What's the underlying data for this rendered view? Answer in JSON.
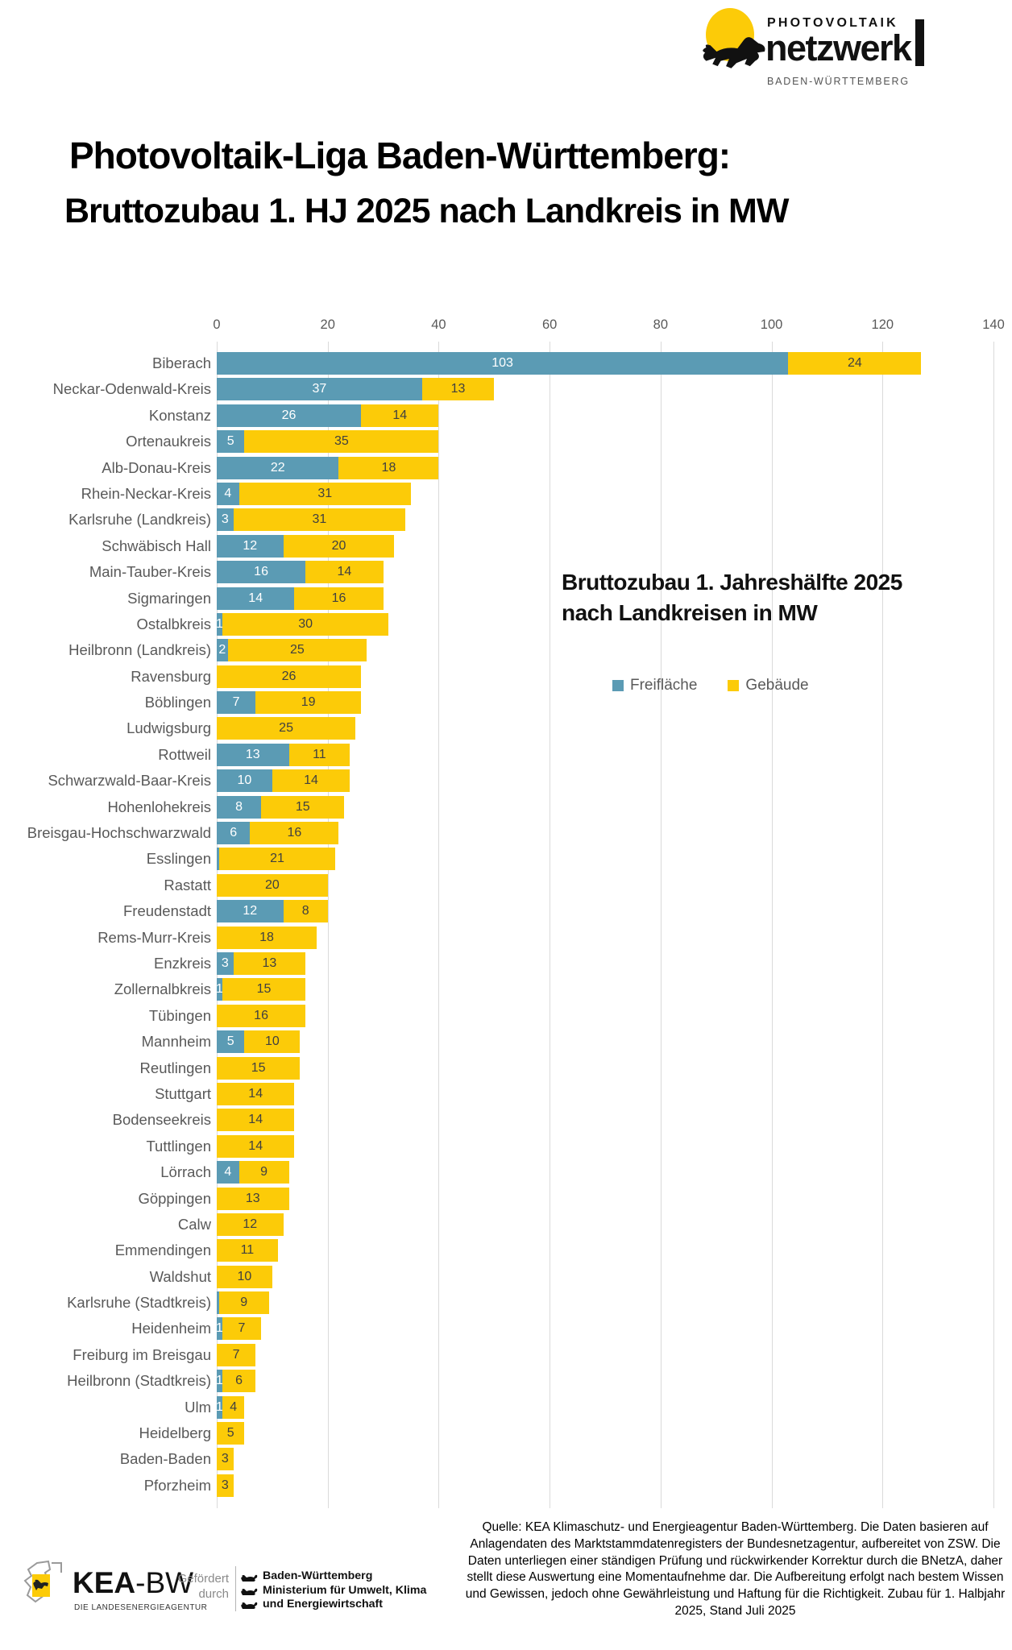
{
  "logo": {
    "brand_top": "PHOTOVOLTAIK",
    "brand_main": "netzwerk",
    "brand_sub": "BADEN-WÜRTTEMBERG"
  },
  "header": {
    "title_line1": "Photovoltaik-Liga Baden-Württemberg:",
    "title_line2": "Bruttozubau 1. HJ 2025 nach Landkreis in MW"
  },
  "chart_data": {
    "type": "bar",
    "orientation": "horizontal",
    "stacked": true,
    "title_lines": [
      "Bruttozubau 1. Jahreshälfte 2025",
      "nach Landkreisen in MW"
    ],
    "xlabel": "MW",
    "xlim": [
      0,
      140
    ],
    "x_ticks": [
      0,
      20,
      40,
      60,
      80,
      100,
      120,
      140
    ],
    "grid": true,
    "legend_position": "center-right",
    "legend": [
      "Freifläche",
      "Gebäude"
    ],
    "colors": {
      "freiflaeche": "#5B9BB4",
      "gebaeude": "#FCCB08",
      "label_on_blue": "#FFFFFF",
      "label_on_yellow": "#404040"
    },
    "rows": [
      {
        "name": "Biberach",
        "freiflaeche": 103,
        "gebaeude": 24
      },
      {
        "name": "Neckar-Odenwald-Kreis",
        "freiflaeche": 37,
        "gebaeude": 13
      },
      {
        "name": "Konstanz",
        "freiflaeche": 26,
        "gebaeude": 14
      },
      {
        "name": "Ortenaukreis",
        "freiflaeche": 5,
        "gebaeude": 35
      },
      {
        "name": "Alb-Donau-Kreis",
        "freiflaeche": 22,
        "gebaeude": 18
      },
      {
        "name": "Rhein-Neckar-Kreis",
        "freiflaeche": 4,
        "gebaeude": 31
      },
      {
        "name": "Karlsruhe (Landkreis)",
        "freiflaeche": 3,
        "gebaeude": 31
      },
      {
        "name": "Schwäbisch Hall",
        "freiflaeche": 12,
        "gebaeude": 20
      },
      {
        "name": "Main-Tauber-Kreis",
        "freiflaeche": 16,
        "gebaeude": 14
      },
      {
        "name": "Sigmaringen",
        "freiflaeche": 14,
        "gebaeude": 16
      },
      {
        "name": "Ostalbkreis",
        "freiflaeche": 1,
        "gebaeude": 30
      },
      {
        "name": "Heilbronn (Landkreis)",
        "freiflaeche": 2,
        "gebaeude": 25
      },
      {
        "name": "Ravensburg",
        "freiflaeche": 0,
        "gebaeude": 26
      },
      {
        "name": "Böblingen",
        "freiflaeche": 7,
        "gebaeude": 19
      },
      {
        "name": "Ludwigsburg",
        "freiflaeche": 0,
        "gebaeude": 25
      },
      {
        "name": "Rottweil",
        "freiflaeche": 13,
        "gebaeude": 11
      },
      {
        "name": "Schwarzwald-Baar-Kreis",
        "freiflaeche": 10,
        "gebaeude": 14
      },
      {
        "name": "Hohenlohekreis",
        "freiflaeche": 8,
        "gebaeude": 15
      },
      {
        "name": "Breisgau-Hochschwarzwald",
        "freiflaeche": 6,
        "gebaeude": 16
      },
      {
        "name": "Esslingen",
        "freiflaeche": 0.4,
        "gebaeude": 21
      },
      {
        "name": "Rastatt",
        "freiflaeche": 0,
        "gebaeude": 20
      },
      {
        "name": "Freudenstadt",
        "freiflaeche": 12,
        "gebaeude": 8
      },
      {
        "name": "Rems-Murr-Kreis",
        "freiflaeche": 0,
        "gebaeude": 18
      },
      {
        "name": "Enzkreis",
        "freiflaeche": 3,
        "gebaeude": 13
      },
      {
        "name": "Zollernalbkreis",
        "freiflaeche": 1,
        "gebaeude": 15
      },
      {
        "name": "Tübingen",
        "freiflaeche": 0,
        "gebaeude": 16
      },
      {
        "name": "Mannheim",
        "freiflaeche": 5,
        "gebaeude": 10
      },
      {
        "name": "Reutlingen",
        "freiflaeche": 0,
        "gebaeude": 15
      },
      {
        "name": "Stuttgart",
        "freiflaeche": 0,
        "gebaeude": 14
      },
      {
        "name": "Bodenseekreis",
        "freiflaeche": 0,
        "gebaeude": 14
      },
      {
        "name": "Tuttlingen",
        "freiflaeche": 0,
        "gebaeude": 14
      },
      {
        "name": "Lörrach",
        "freiflaeche": 4,
        "gebaeude": 9
      },
      {
        "name": "Göppingen",
        "freiflaeche": 0,
        "gebaeude": 13
      },
      {
        "name": "Calw",
        "freiflaeche": 0,
        "gebaeude": 12
      },
      {
        "name": "Emmendingen",
        "freiflaeche": 0,
        "gebaeude": 11
      },
      {
        "name": "Waldshut",
        "freiflaeche": 0,
        "gebaeude": 10
      },
      {
        "name": "Karlsruhe (Stadtkreis)",
        "freiflaeche": 0.4,
        "gebaeude": 9
      },
      {
        "name": "Heidenheim",
        "freiflaeche": 1,
        "gebaeude": 7
      },
      {
        "name": "Freiburg im Breisgau",
        "freiflaeche": 0,
        "gebaeude": 7
      },
      {
        "name": "Heilbronn (Stadtkreis)",
        "freiflaeche": 1,
        "gebaeude": 6
      },
      {
        "name": "Ulm",
        "freiflaeche": 1,
        "gebaeude": 4
      },
      {
        "name": "Heidelberg",
        "freiflaeche": 0,
        "gebaeude": 5
      },
      {
        "name": "Baden-Baden",
        "freiflaeche": 0,
        "gebaeude": 3
      },
      {
        "name": "Pforzheim",
        "freiflaeche": 0,
        "gebaeude": 3
      }
    ]
  },
  "footer": {
    "kea": {
      "name_bold": "KEA",
      "name_rest": "-BW",
      "subline": "DIE LANDESENERGIEAGENTUR"
    },
    "funding_label": "Gefördert durch",
    "ministry": {
      "lines": [
        "Baden-Württemberg",
        "Ministerium für Umwelt, Klima",
        "und Energiewirtschaft"
      ]
    },
    "source_text": "Quelle: KEA Klimaschutz- und Energieagentur Baden-Württemberg. Die Daten basieren auf Anlagendaten des Marktstammdatenregisters der Bundesnetzagentur, aufbereitet von ZSW. Die Daten unterliegen einer ständigen Prüfung und rückwirkender Korrektur durch die BNetzA, daher stellt diese Auswertung eine Momentaufnehme dar. Die Aufbereitung erfolgt nach bestem Wissen und Gewissen, jedoch ohne Gewährleistung und Haftung für die Richtigkeit. Zubau für 1. Halbjahr 2025, Stand Juli 2025"
  }
}
